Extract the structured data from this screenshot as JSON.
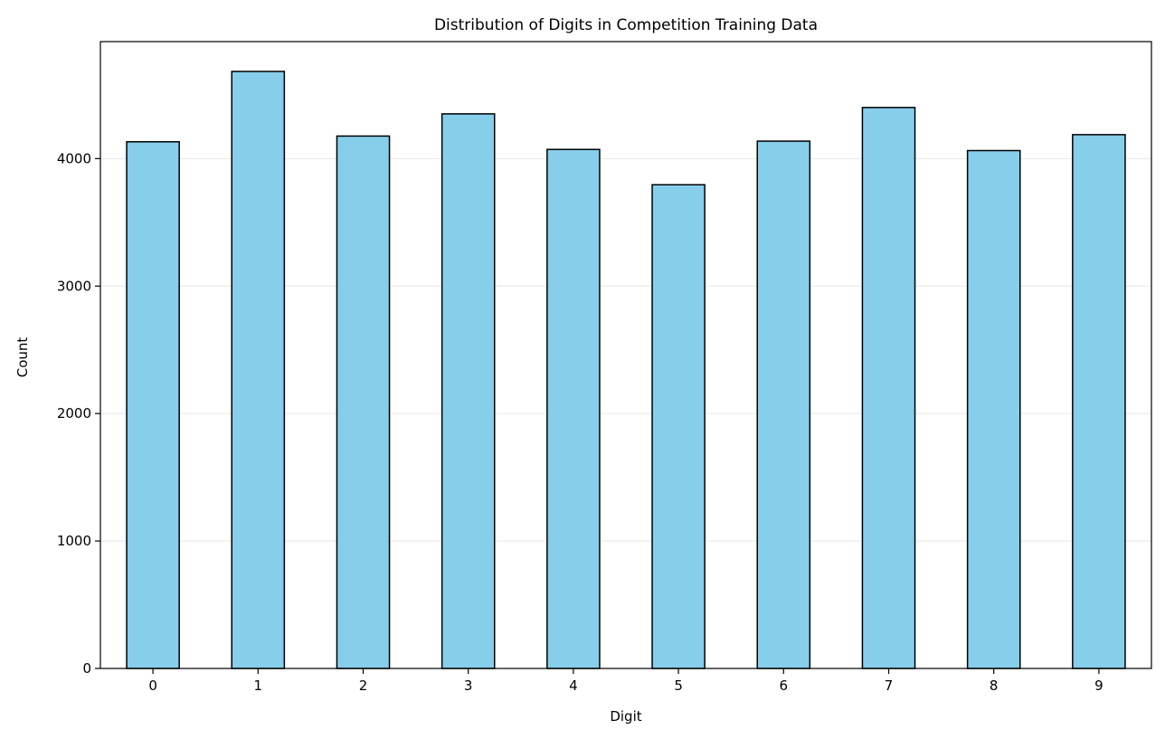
{
  "chart_data": {
    "type": "bar",
    "title": "Distribution of Digits in Competition Training Data",
    "xlabel": "Digit",
    "ylabel": "Count",
    "categories": [
      "0",
      "1",
      "2",
      "3",
      "4",
      "5",
      "6",
      "7",
      "8",
      "9"
    ],
    "values": [
      4132,
      4684,
      4177,
      4351,
      4072,
      3795,
      4137,
      4401,
      4063,
      4188
    ],
    "ylim": [
      0,
      4918
    ],
    "yticks": [
      0,
      1000,
      2000,
      3000,
      4000
    ],
    "ytick_labels": [
      "0",
      "1000",
      "2000",
      "3000",
      "4000"
    ],
    "grid": "y",
    "legend": "none",
    "colors": {
      "bar_fill": "#87CEEB",
      "bar_edge": "#000000",
      "grid": "#e6e6e6"
    }
  }
}
